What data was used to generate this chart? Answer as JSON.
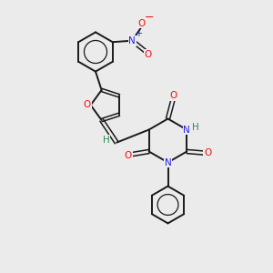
{
  "background_color": "#ebebeb",
  "bond_color": "#1a1a1a",
  "atom_colors": {
    "O": "#ee1111",
    "N": "#2222ee",
    "H": "#2e8b57",
    "C": "#1a1a1a"
  },
  "figsize": [
    3.0,
    3.0
  ],
  "dpi": 100
}
